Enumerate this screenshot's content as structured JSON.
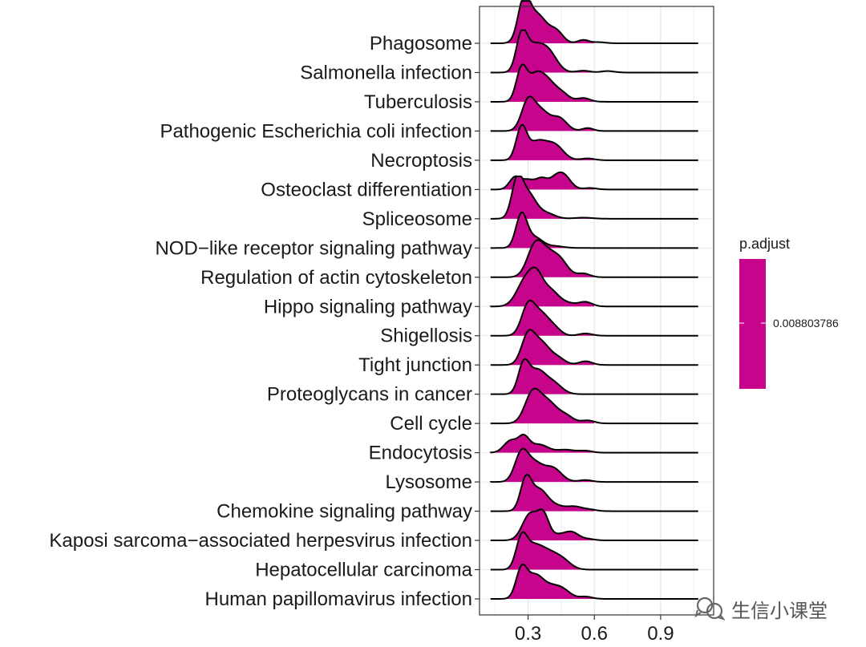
{
  "chart_data": {
    "type": "ridgeline",
    "xlim": [
      0.08,
      1.14
    ],
    "x_ticks": [
      0.3,
      0.6,
      0.9
    ],
    "x_tick_labels": [
      "0.3",
      "0.6",
      "0.9"
    ],
    "categories": [
      "Phagosome",
      "Salmonella infection",
      "Tuberculosis",
      "Pathogenic Escherichia coli infection",
      "Necroptosis",
      "Osteoclast differentiation",
      "Spliceosome",
      "NOD−like receptor signaling pathway",
      "Regulation of actin cytoskeleton",
      "Hippo signaling pathway",
      "Shigellosis",
      "Tight junction",
      "Proteoglycans in cancer",
      "Cell cycle",
      "Endocytosis",
      "Lysosome",
      "Chemokine signaling pathway",
      "Kaposi sarcoma−associated herpesvirus infection",
      "Hepatocellular carcinoma",
      "Human papillomavirus infection"
    ],
    "fill_color": "#c7058c",
    "density_x_range": [
      0.13,
      1.07
    ],
    "series": [
      {
        "name": "Phagosome",
        "peaks": [
          [
            0.28,
            1.0,
            0.026
          ],
          [
            0.34,
            0.78,
            0.045
          ],
          [
            0.43,
            0.28,
            0.03
          ],
          [
            0.55,
            0.09,
            0.025
          ],
          [
            0.62,
            0.03,
            0.03
          ]
        ]
      },
      {
        "name": "Salmonella infection",
        "peaks": [
          [
            0.27,
            0.88,
            0.024
          ],
          [
            0.32,
            0.62,
            0.04
          ],
          [
            0.39,
            0.55,
            0.04
          ],
          [
            0.55,
            0.05,
            0.03
          ],
          [
            0.66,
            0.04,
            0.03
          ]
        ]
      },
      {
        "name": "Tuberculosis",
        "peaks": [
          [
            0.27,
            0.85,
            0.024
          ],
          [
            0.33,
            0.6,
            0.035
          ],
          [
            0.39,
            0.52,
            0.04
          ],
          [
            0.46,
            0.16,
            0.03
          ],
          [
            0.55,
            0.1,
            0.03
          ]
        ]
      },
      {
        "name": "Pathogenic Escherichia coli infection",
        "peaks": [
          [
            0.3,
            0.8,
            0.03
          ],
          [
            0.36,
            0.5,
            0.035
          ],
          [
            0.44,
            0.35,
            0.035
          ],
          [
            0.57,
            0.08,
            0.025
          ]
        ]
      },
      {
        "name": "Necroptosis",
        "peaks": [
          [
            0.27,
            0.85,
            0.024
          ],
          [
            0.34,
            0.48,
            0.04
          ],
          [
            0.42,
            0.4,
            0.04
          ],
          [
            0.57,
            0.05,
            0.03
          ]
        ]
      },
      {
        "name": "Osteoclast differentiation",
        "peaks": [
          [
            0.24,
            0.32,
            0.025
          ],
          [
            0.3,
            0.25,
            0.03
          ],
          [
            0.36,
            0.25,
            0.025
          ],
          [
            0.43,
            0.34,
            0.035
          ],
          [
            0.47,
            0.22,
            0.03
          ],
          [
            0.58,
            0.04,
            0.03
          ]
        ]
      },
      {
        "name": "Spliceosome",
        "peaks": [
          [
            0.25,
            0.95,
            0.025
          ],
          [
            0.3,
            0.65,
            0.035
          ],
          [
            0.38,
            0.15,
            0.04
          ],
          [
            0.55,
            0.03,
            0.04
          ]
        ]
      },
      {
        "name": "NOD−like receptor signaling pathway",
        "peaks": [
          [
            0.27,
            0.9,
            0.025
          ],
          [
            0.33,
            0.28,
            0.035
          ],
          [
            0.42,
            0.05,
            0.04
          ]
        ]
      },
      {
        "name": "Regulation of actin cytoskeleton",
        "peaks": [
          [
            0.33,
            0.78,
            0.035
          ],
          [
            0.39,
            0.55,
            0.04
          ],
          [
            0.45,
            0.35,
            0.035
          ],
          [
            0.55,
            0.1,
            0.03
          ]
        ]
      },
      {
        "name": "Hippo signaling pathway",
        "peaks": [
          [
            0.29,
            0.72,
            0.04
          ],
          [
            0.34,
            0.6,
            0.03
          ],
          [
            0.4,
            0.4,
            0.035
          ],
          [
            0.47,
            0.1,
            0.04
          ],
          [
            0.56,
            0.12,
            0.03
          ]
        ]
      },
      {
        "name": "Shigellosis",
        "peaks": [
          [
            0.3,
            0.8,
            0.03
          ],
          [
            0.36,
            0.55,
            0.035
          ],
          [
            0.42,
            0.18,
            0.03
          ],
          [
            0.56,
            0.06,
            0.03
          ]
        ]
      },
      {
        "name": "Tight junction",
        "peaks": [
          [
            0.3,
            0.8,
            0.03
          ],
          [
            0.36,
            0.55,
            0.035
          ],
          [
            0.43,
            0.2,
            0.035
          ],
          [
            0.56,
            0.1,
            0.03
          ]
        ]
      },
      {
        "name": "Proteoglycans in cancer",
        "peaks": [
          [
            0.28,
            0.8,
            0.025
          ],
          [
            0.34,
            0.58,
            0.035
          ],
          [
            0.41,
            0.32,
            0.04
          ]
        ]
      },
      {
        "name": "Cell cycle",
        "peaks": [
          [
            0.32,
            0.8,
            0.035
          ],
          [
            0.39,
            0.55,
            0.04
          ],
          [
            0.47,
            0.2,
            0.035
          ],
          [
            0.57,
            0.08,
            0.03
          ]
        ]
      },
      {
        "name": "Endocytosis",
        "peaks": [
          [
            0.22,
            0.32,
            0.03
          ],
          [
            0.28,
            0.4,
            0.025
          ],
          [
            0.35,
            0.22,
            0.04
          ],
          [
            0.47,
            0.08,
            0.04
          ],
          [
            0.56,
            0.05,
            0.03
          ]
        ]
      },
      {
        "name": "Lysosome",
        "peaks": [
          [
            0.27,
            0.78,
            0.03
          ],
          [
            0.33,
            0.45,
            0.035
          ],
          [
            0.41,
            0.38,
            0.04
          ],
          [
            0.56,
            0.05,
            0.03
          ]
        ]
      },
      {
        "name": "Chemokine signaling pathway",
        "peaks": [
          [
            0.29,
            0.85,
            0.025
          ],
          [
            0.35,
            0.55,
            0.035
          ],
          [
            0.42,
            0.15,
            0.04
          ],
          [
            0.51,
            0.12,
            0.035
          ],
          [
            0.58,
            0.04,
            0.03
          ]
        ]
      },
      {
        "name": "Kaposi sarcoma−associated herpesvirus infection",
        "peaks": [
          [
            0.31,
            0.72,
            0.035
          ],
          [
            0.37,
            0.62,
            0.025
          ],
          [
            0.44,
            0.15,
            0.035
          ],
          [
            0.5,
            0.2,
            0.03
          ],
          [
            0.57,
            0.04,
            0.03
          ]
        ]
      },
      {
        "name": "Hepatocellular carcinoma",
        "peaks": [
          [
            0.27,
            0.8,
            0.025
          ],
          [
            0.32,
            0.5,
            0.035
          ],
          [
            0.38,
            0.42,
            0.04
          ],
          [
            0.45,
            0.28,
            0.04
          ]
        ]
      },
      {
        "name": "Human papillomavirus infection",
        "peaks": [
          [
            0.27,
            0.78,
            0.025
          ],
          [
            0.33,
            0.58,
            0.035
          ],
          [
            0.4,
            0.3,
            0.04
          ],
          [
            0.46,
            0.2,
            0.035
          ],
          [
            0.56,
            0.06,
            0.03
          ]
        ]
      }
    ],
    "legend": {
      "title": "p.adjust",
      "label": "0.008803786",
      "color": "#c7058c",
      "placement": "right"
    },
    "grid": true
  },
  "watermark": {
    "text": "生信小课堂",
    "icon": "wechat-channel-icon"
  }
}
